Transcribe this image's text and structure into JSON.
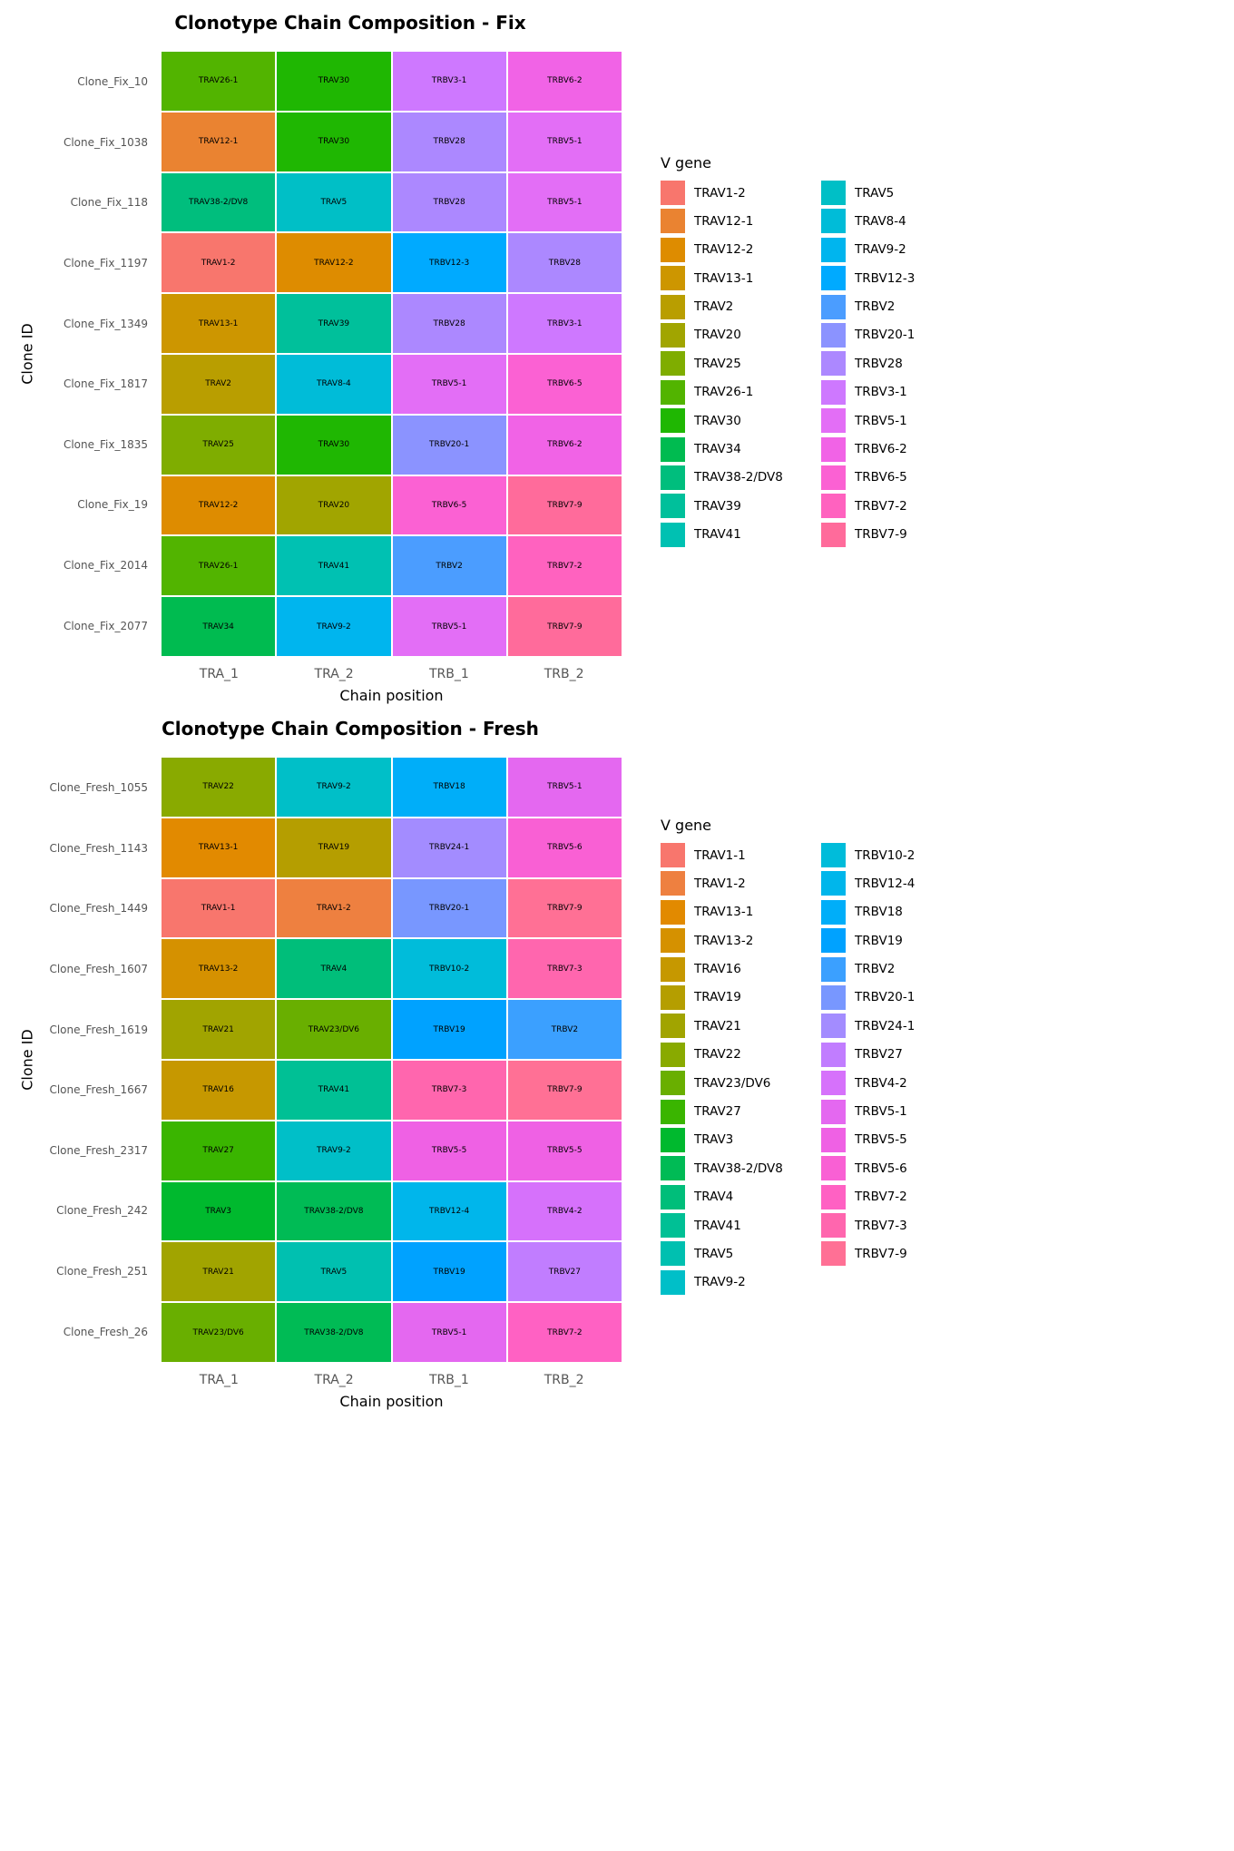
{
  "colors": {
    "axis_text": "#555555",
    "cell_text": "#000000",
    "title_text": "#000000",
    "grid_separator": "#ffffff"
  },
  "chart_data": [
    {
      "type": "heatmap",
      "title": "Clonotype Chain Composition - Fix",
      "xlabel": "Chain position",
      "ylabel": "Clone ID",
      "legend_title": "V gene",
      "legend_position": "right",
      "x_ticks": [
        "TRA_1",
        "TRA_2",
        "TRB_1",
        "TRB_2"
      ],
      "rows": [
        {
          "id": "Clone_Fix_10",
          "genes": [
            "TRAV26-1",
            "TRAV30",
            "TRBV3-1",
            "TRBV6-2"
          ]
        },
        {
          "id": "Clone_Fix_1038",
          "genes": [
            "TRAV12-1",
            "TRAV30",
            "TRBV28",
            "TRBV5-1"
          ]
        },
        {
          "id": "Clone_Fix_118",
          "genes": [
            "TRAV38-2/DV8",
            "TRAV5",
            "TRBV28",
            "TRBV5-1"
          ]
        },
        {
          "id": "Clone_Fix_1197",
          "genes": [
            "TRAV1-2",
            "TRAV12-2",
            "TRBV12-3",
            "TRBV28"
          ]
        },
        {
          "id": "Clone_Fix_1349",
          "genes": [
            "TRAV13-1",
            "TRAV39",
            "TRBV28",
            "TRBV3-1"
          ]
        },
        {
          "id": "Clone_Fix_1817",
          "genes": [
            "TRAV2",
            "TRAV8-4",
            "TRBV5-1",
            "TRBV6-5"
          ]
        },
        {
          "id": "Clone_Fix_1835",
          "genes": [
            "TRAV25",
            "TRAV30",
            "TRBV20-1",
            "TRBV6-2"
          ]
        },
        {
          "id": "Clone_Fix_19",
          "genes": [
            "TRAV12-2",
            "TRAV20",
            "TRBV6-5",
            "TRBV7-9"
          ]
        },
        {
          "id": "Clone_Fix_2014",
          "genes": [
            "TRAV26-1",
            "TRAV41",
            "TRBV2",
            "TRBV7-2"
          ]
        },
        {
          "id": "Clone_Fix_2077",
          "genes": [
            "TRAV34",
            "TRAV9-2",
            "TRBV5-1",
            "TRBV7-9"
          ]
        }
      ],
      "legend_left": [
        "TRAV1-2",
        "TRAV12-1",
        "TRAV12-2",
        "TRAV13-1",
        "TRAV2",
        "TRAV20",
        "TRAV25",
        "TRAV26-1",
        "TRAV30",
        "TRAV34",
        "TRAV38-2/DV8",
        "TRAV39",
        "TRAV41"
      ],
      "legend_right": [
        "TRAV5",
        "TRAV8-4",
        "TRAV9-2",
        "TRBV12-3",
        "TRBV2",
        "TRBV20-1",
        "TRBV28",
        "TRBV3-1",
        "TRBV5-1",
        "TRBV6-2",
        "TRBV6-5",
        "TRBV7-2",
        "TRBV7-9"
      ],
      "palette": {
        "TRAV1-2": "#F8766D",
        "TRAV12-1": "#EA8331",
        "TRAV12-2": "#DE8C00",
        "TRAV13-1": "#CD9600",
        "TRAV2": "#B99E00",
        "TRAV20": "#A1A500",
        "TRAV25": "#7FAD00",
        "TRAV26-1": "#52B400",
        "TRAV30": "#1FB702",
        "TRAV34": "#00BB50",
        "TRAV38-2/DV8": "#00BE7D",
        "TRAV39": "#00C09B",
        "TRAV41": "#00C1B2",
        "TRAV5": "#00BFC6",
        "TRAV8-4": "#00BCD8",
        "TRAV9-2": "#00B5EE",
        "TRBV12-3": "#00AAFF",
        "TRBV2": "#4B9DFF",
        "TRBV20-1": "#8B93FF",
        "TRBV28": "#AC88FF",
        "TRBV3-1": "#CE78FF",
        "TRBV5-1": "#E36EF6",
        "TRBV6-2": "#F163E6",
        "TRBV6-5": "#FB61D3",
        "TRBV7-2": "#FF62BF",
        "TRBV7-9": "#FF6B9B"
      }
    },
    {
      "type": "heatmap",
      "title": "Clonotype Chain Composition - Fresh",
      "xlabel": "Chain position",
      "ylabel": "Clone ID",
      "legend_title": "V gene",
      "legend_position": "right",
      "x_ticks": [
        "TRA_1",
        "TRA_2",
        "TRB_1",
        "TRB_2"
      ],
      "rows": [
        {
          "id": "Clone_Fresh_1055",
          "genes": [
            "TRAV22",
            "TRAV9-2",
            "TRBV18",
            "TRBV5-1"
          ]
        },
        {
          "id": "Clone_Fresh_1143",
          "genes": [
            "TRAV13-1",
            "TRAV19",
            "TRBV24-1",
            "TRBV5-6"
          ]
        },
        {
          "id": "Clone_Fresh_1449",
          "genes": [
            "TRAV1-1",
            "TRAV1-2",
            "TRBV20-1",
            "TRBV7-9"
          ]
        },
        {
          "id": "Clone_Fresh_1607",
          "genes": [
            "TRAV13-2",
            "TRAV4",
            "TRBV10-2",
            "TRBV7-3"
          ]
        },
        {
          "id": "Clone_Fresh_1619",
          "genes": [
            "TRAV21",
            "TRAV23/DV6",
            "TRBV19",
            "TRBV2"
          ]
        },
        {
          "id": "Clone_Fresh_1667",
          "genes": [
            "TRAV16",
            "TRAV41",
            "TRBV7-3",
            "TRBV7-9"
          ]
        },
        {
          "id": "Clone_Fresh_2317",
          "genes": [
            "TRAV27",
            "TRAV9-2",
            "TRBV5-5",
            "TRBV5-5"
          ]
        },
        {
          "id": "Clone_Fresh_242",
          "genes": [
            "TRAV3",
            "TRAV38-2/DV8",
            "TRBV12-4",
            "TRBV4-2"
          ]
        },
        {
          "id": "Clone_Fresh_251",
          "genes": [
            "TRAV21",
            "TRAV5",
            "TRBV19",
            "TRBV27"
          ]
        },
        {
          "id": "Clone_Fresh_26",
          "genes": [
            "TRAV23/DV6",
            "TRAV38-2/DV8",
            "TRBV5-1",
            "TRBV7-2"
          ]
        }
      ],
      "legend_left": [
        "TRAV1-1",
        "TRAV1-2",
        "TRAV13-1",
        "TRAV13-2",
        "TRAV16",
        "TRAV19",
        "TRAV21",
        "TRAV22",
        "TRAV23/DV6",
        "TRAV27",
        "TRAV3",
        "TRAV38-2/DV8",
        "TRAV4",
        "TRAV41",
        "TRAV5",
        "TRAV9-2"
      ],
      "legend_right": [
        "TRBV10-2",
        "TRBV12-4",
        "TRBV18",
        "TRBV19",
        "TRBV2",
        "TRBV20-1",
        "TRBV24-1",
        "TRBV27",
        "TRBV4-2",
        "TRBV5-1",
        "TRBV5-5",
        "TRBV5-6",
        "TRBV7-2",
        "TRBV7-3",
        "TRBV7-9"
      ],
      "palette": {
        "TRAV1-1": "#F8766D",
        "TRAV1-2": "#EE8040",
        "TRAV13-1": "#E28A00",
        "TRAV13-2": "#D59100",
        "TRAV16": "#C69800",
        "TRAV19": "#B59E00",
        "TRAV21": "#A1A400",
        "TRAV22": "#89AA00",
        "TRAV23/DV6": "#69AF00",
        "TRAV27": "#3AB500",
        "TRAV3": "#00B92E",
        "TRAV38-2/DV8": "#00BB55",
        "TRAV4": "#00BE7A",
        "TRAV41": "#00C095",
        "TRAV5": "#00C0B0",
        "TRAV9-2": "#00BFC8",
        "TRBV10-2": "#00BCDA",
        "TRBV12-4": "#00B6EB",
        "TRBV18": "#00AEF9",
        "TRBV19": "#00A2FF",
        "TRBV2": "#3BA0FF",
        "TRBV20-1": "#7897FF",
        "TRBV24-1": "#A38CFF",
        "TRBV27": "#C17DFF",
        "TRBV4-2": "#D671FB",
        "TRBV5-1": "#E468F0",
        "TRBV5-5": "#EF61E4",
        "TRBV5-6": "#F960D4",
        "TRBV7-2": "#FF61C3",
        "TRBV7-3": "#FF66AE",
        "TRBV7-9": "#FF7095"
      }
    }
  ]
}
